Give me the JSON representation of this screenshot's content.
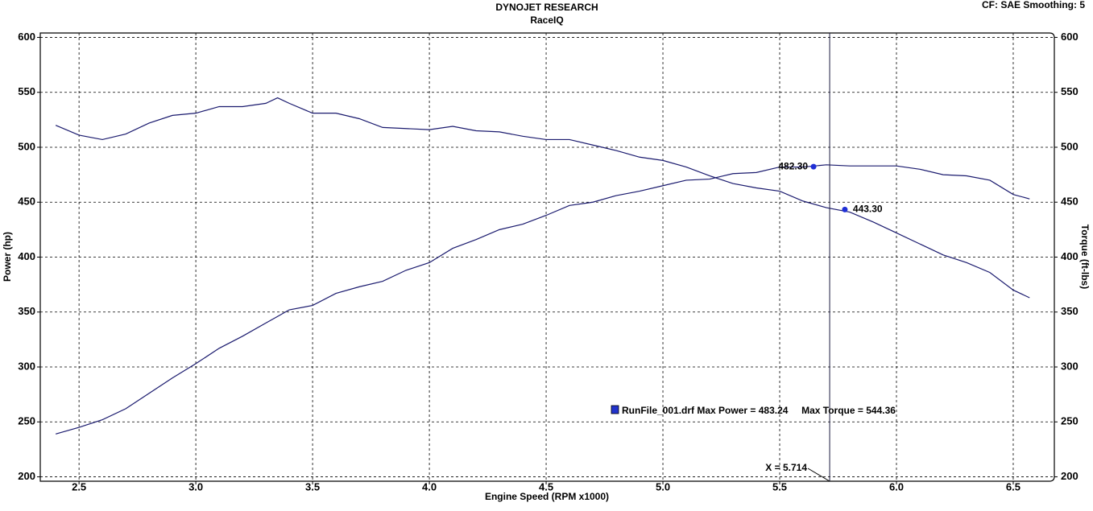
{
  "chart_data": {
    "type": "line",
    "title": "DYNOJET RESEARCH",
    "subtitle": "RaceIQ",
    "settings_label": "CF: SAE  Smoothing: 5",
    "x_label": "Engine Speed (RPM x1000)",
    "y_label": "Power (hp)",
    "y2_label": "Torque (ft-lbs)",
    "legend_text": "RunFile_001.drf Max Power = 483.24     Max Torque = 544.36",
    "legend_color": "#2233cc",
    "grid": true,
    "xlim": [
      2.334,
      6.676
    ],
    "xticks": [
      2.5,
      {
        "value": 3,
        "label": "3.0"
      },
      3.5,
      {
        "value": 4,
        "label": "4.0"
      },
      4.5,
      {
        "value": 5,
        "label": "5.0"
      },
      5.5,
      {
        "value": 6,
        "label": "6.0"
      },
      6.5
    ],
    "ylim": [
      196,
      604
    ],
    "yticks": [
      200,
      250,
      300,
      350,
      400,
      450,
      500,
      550,
      600
    ],
    "y2lim": [
      196,
      604
    ],
    "y2ticks": [
      200,
      250,
      300,
      350,
      400,
      450,
      500,
      550,
      600
    ],
    "x": [
      2.4,
      2.5,
      2.6,
      2.7,
      2.8,
      2.9,
      3.0,
      3.1,
      3.2,
      3.3,
      3.35,
      3.4,
      3.5,
      3.6,
      3.7,
      3.8,
      3.9,
      4.0,
      4.1,
      4.2,
      4.3,
      4.4,
      4.5,
      4.6,
      4.7,
      4.8,
      4.9,
      5.0,
      5.1,
      5.2,
      5.3,
      5.4,
      5.5,
      5.6,
      5.7,
      5.8,
      5.9,
      6.0,
      6.1,
      6.2,
      6.3,
      6.4,
      6.5,
      6.57
    ],
    "series": [
      {
        "color": "#1a1a6e",
        "values": [
          239,
          245,
          252,
          262,
          276,
          290,
          303,
          317,
          328,
          340,
          346,
          352,
          356,
          367,
          373,
          378,
          388,
          395,
          408,
          416,
          425,
          430,
          438,
          447,
          450,
          456,
          460,
          465,
          470,
          471,
          476,
          477,
          482,
          482,
          484,
          483,
          483,
          483,
          480,
          475,
          474,
          470,
          457,
          453
        ]
      },
      {
        "color": "#1a1a6e",
        "axis": "y2",
        "values": [
          520,
          511,
          507,
          512,
          522,
          529,
          531,
          537,
          537,
          540,
          545,
          540,
          531,
          531,
          526,
          518,
          517,
          516,
          519,
          515,
          514,
          510,
          507,
          507,
          502,
          497,
          491,
          488,
          482,
          474,
          467,
          463,
          460,
          451,
          445,
          441,
          432,
          422,
          412,
          402,
          395,
          386,
          370,
          363
        ]
      }
    ],
    "markers": {
      "color": "#1f2fd6",
      "x": [
        5.645,
        5.779
      ],
      "values": [
        482.3,
        443.3
      ],
      "value_labels": [
        "482.30",
        "443.30"
      ]
    },
    "cursor_x": 5.714,
    "cursor_label": "X = 5.714"
  }
}
